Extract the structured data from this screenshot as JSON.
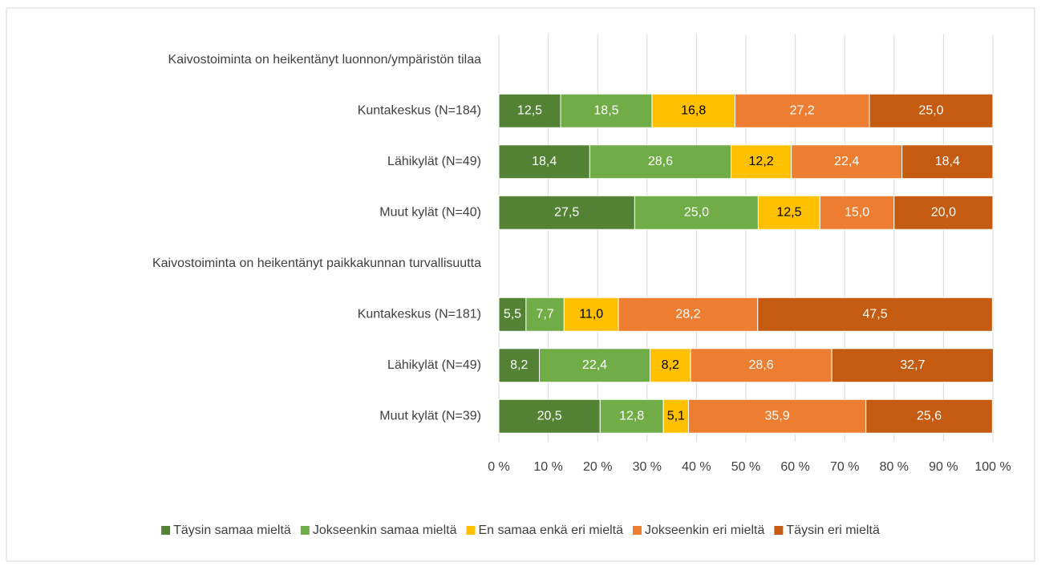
{
  "chart_data": {
    "type": "stacked-bar-horizontal",
    "categories": [
      "Kaivostoiminta on heikentänyt luonnon/ympäristön tilaa",
      "Kuntakeskus (N=184)",
      "Lähikylät (N=49)",
      "Muut kylät (N=40)",
      "Kaivostoiminta on heikentänyt paikkakunnan turvallisuutta",
      "Kuntakeskus (N=181)",
      "Lähikylät (N=49)",
      "Muut kylät (N=39)"
    ],
    "series": [
      {
        "name": "Täysin samaa mieltä",
        "color": "#548235",
        "label_color": "#ffffff",
        "values": [
          null,
          12.5,
          18.4,
          27.5,
          null,
          5.5,
          8.2,
          20.5
        ],
        "value_labels": [
          null,
          "12,5",
          "18,4",
          "27,5",
          null,
          "5,5",
          "8,2",
          "20,5"
        ]
      },
      {
        "name": "Jokseenkin samaa mieltä",
        "color": "#70ad47",
        "label_color": "#ffffff",
        "values": [
          null,
          18.5,
          28.6,
          25.0,
          null,
          7.7,
          22.4,
          12.8
        ],
        "value_labels": [
          null,
          "18,5",
          "28,6",
          "25,0",
          null,
          "7,7",
          "22,4",
          "12,8"
        ]
      },
      {
        "name": "En samaa enkä eri mieltä",
        "color": "#ffc000",
        "label_color": "#000000",
        "values": [
          null,
          16.8,
          12.2,
          12.5,
          null,
          11.0,
          8.2,
          5.1
        ],
        "value_labels": [
          null,
          "16,8",
          "12,2",
          "12,5",
          null,
          "11,0",
          "8,2",
          "5,1"
        ]
      },
      {
        "name": "Jokseenkin eri mieltä",
        "color": "#ed7d31",
        "label_color": "#ffffff",
        "values": [
          null,
          27.2,
          22.4,
          15.0,
          null,
          28.2,
          28.6,
          35.9
        ],
        "value_labels": [
          null,
          "27,2",
          "22,4",
          "15,0",
          null,
          "28,2",
          "28,6",
          "35,9"
        ]
      },
      {
        "name": "Täysin eri mieltä",
        "color": "#c55a11",
        "label_color": "#ffffff",
        "values": [
          null,
          25.0,
          18.4,
          20.0,
          null,
          47.5,
          32.7,
          25.6
        ],
        "value_labels": [
          null,
          "25,0",
          "18,4",
          "20,0",
          null,
          "47,5",
          "32,7",
          "25,6"
        ]
      }
    ],
    "xlim": [
      0,
      100
    ],
    "xticks": [
      {
        "value": 0,
        "label": "0 %"
      },
      {
        "value": 10,
        "label": "10 %"
      },
      {
        "value": 20,
        "label": "20 %"
      },
      {
        "value": 30,
        "label": "30 %"
      },
      {
        "value": 40,
        "label": "40 %"
      },
      {
        "value": 50,
        "label": "50 %"
      },
      {
        "value": 60,
        "label": "60 %"
      },
      {
        "value": 70,
        "label": "70 %"
      },
      {
        "value": 80,
        "label": "80 %"
      },
      {
        "value": 90,
        "label": "90 %"
      },
      {
        "value": 100,
        "label": "100 %"
      }
    ],
    "grid": true,
    "legend": "bottom"
  }
}
